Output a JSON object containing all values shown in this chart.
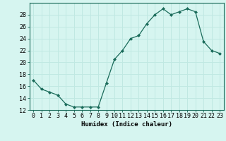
{
  "x": [
    0,
    1,
    2,
    3,
    4,
    5,
    6,
    7,
    8,
    9,
    10,
    11,
    12,
    13,
    14,
    15,
    16,
    17,
    18,
    19,
    20,
    21,
    22,
    23
  ],
  "y": [
    17,
    15.5,
    15,
    14.5,
    13,
    12.5,
    12.5,
    12.5,
    12.5,
    16.5,
    20.5,
    22,
    24,
    24.5,
    26.5,
    28,
    29,
    28,
    28.5,
    29,
    28.5,
    23.5,
    22,
    21.5
  ],
  "line_color": "#1a6b5a",
  "marker": "D",
  "marker_size": 2.0,
  "bg_color": "#d6f5f0",
  "grid_color": "#c0e8e2",
  "xlabel": "Humidex (Indice chaleur)",
  "xlim": [
    -0.5,
    23.5
  ],
  "ylim": [
    12,
    30
  ],
  "yticks": [
    12,
    14,
    16,
    18,
    20,
    22,
    24,
    26,
    28
  ],
  "xticks": [
    0,
    1,
    2,
    3,
    4,
    5,
    6,
    7,
    8,
    9,
    10,
    11,
    12,
    13,
    14,
    15,
    16,
    17,
    18,
    19,
    20,
    21,
    22,
    23
  ],
  "xlabel_fontsize": 6.5,
  "tick_fontsize": 6.0
}
